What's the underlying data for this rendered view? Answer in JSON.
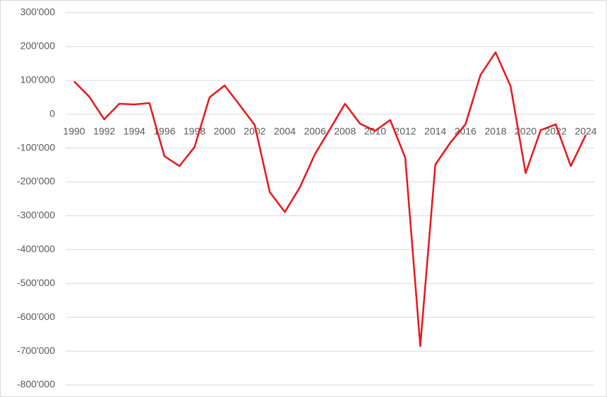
{
  "chart_data": {
    "type": "line",
    "categories": [
      "1990",
      null,
      "1992",
      null,
      "1994",
      null,
      "1996",
      null,
      "1998",
      null,
      "2000",
      null,
      "2002",
      null,
      "2004",
      null,
      "2006",
      null,
      "2008",
      null,
      "2010",
      null,
      "2012",
      null,
      "2014",
      null,
      "2016",
      null,
      "2018",
      null,
      "2020",
      null,
      "2022",
      null,
      "2024"
    ],
    "series": [
      {
        "name": null,
        "color": "#e8161c",
        "values": [
          97000,
          52000,
          -15000,
          31000,
          29000,
          33000,
          -124000,
          -153000,
          -97000,
          50000,
          85000,
          27000,
          -32000,
          -230000,
          -289000,
          -216000,
          -118000,
          -44000,
          31000,
          -28000,
          -49000,
          -17000,
          -128000,
          -685000,
          -149000,
          -84000,
          -30000,
          116000,
          183000,
          83000,
          -174000,
          -47000,
          -30000,
          -153000,
          -61000
        ]
      }
    ],
    "ylim": [
      -800000,
      300000
    ],
    "yticks": [
      {
        "value": -800000,
        "label": "-800'000"
      },
      {
        "value": -700000,
        "label": "-700'000"
      },
      {
        "value": -600000,
        "label": "-600'000"
      },
      {
        "value": -500000,
        "label": "-500'000"
      },
      {
        "value": -400000,
        "label": "-400'000"
      },
      {
        "value": -300000,
        "label": "-300'000"
      },
      {
        "value": -200000,
        "label": "-200'000"
      },
      {
        "value": -100000,
        "label": "-100'000"
      },
      0,
      {
        "value": 100000,
        "label": "100'000"
      },
      {
        "value": 200000,
        "label": "200'000"
      },
      {
        "value": 300000,
        "label": "300'000"
      }
    ],
    "grid": true
  }
}
